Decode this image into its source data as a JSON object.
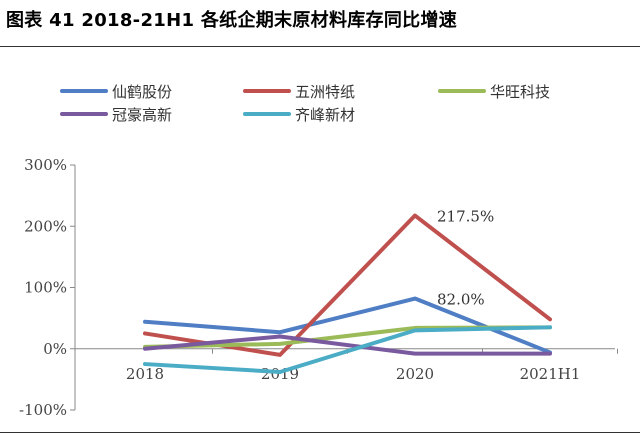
{
  "title": "图表 41 2018-21H1 各纸企期末原材料库存同比增速",
  "chart_data": {
    "type": "line",
    "categories": [
      "2018",
      "2019",
      "2020",
      "2021H1"
    ],
    "ylim": [
      -100,
      300
    ],
    "yticks": [
      300,
      200,
      100,
      0,
      -100
    ],
    "ytick_labels": [
      "300%",
      "200%",
      "100%",
      "0%",
      "-100%"
    ],
    "grid": false,
    "legend_position": "top",
    "series": [
      {
        "name": "仙鹤股份",
        "color": "#4f7ec4",
        "values": [
          44,
          27,
          82,
          -6
        ]
      },
      {
        "name": "五洲特纸",
        "color": "#c0504d",
        "values": [
          25,
          -10,
          217.5,
          48
        ]
      },
      {
        "name": "华旺科技",
        "color": "#9bbb59",
        "values": [
          3,
          8,
          34,
          35
        ]
      },
      {
        "name": "冠豪高新",
        "color": "#7a5a9e",
        "values": [
          0,
          20,
          -8,
          -8
        ]
      },
      {
        "name": "齐峰新材",
        "color": "#4bacc6",
        "values": [
          -25,
          -38,
          30,
          35
        ]
      }
    ],
    "annotations": [
      {
        "series": 1,
        "point": 2,
        "text": "217.5%"
      },
      {
        "series": 0,
        "point": 2,
        "text": "82.0%"
      }
    ]
  }
}
